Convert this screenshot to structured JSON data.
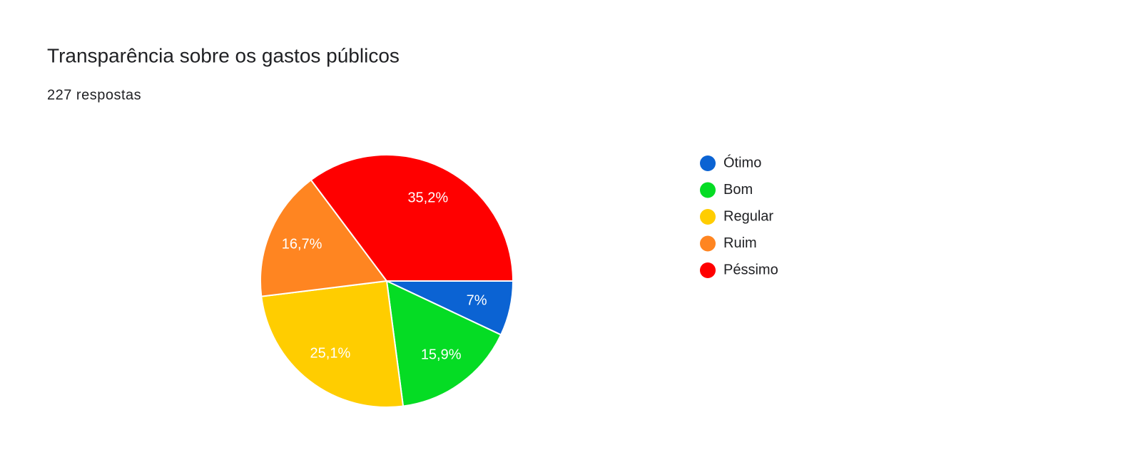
{
  "chart_data": {
    "type": "pie",
    "title": "Transparência sobre os gastos públicos",
    "subtitle": "227 respostas",
    "categories": [
      "Ótimo",
      "Bom",
      "Regular",
      "Ruim",
      "Péssimo"
    ],
    "values": [
      7,
      15.9,
      25.1,
      16.7,
      35.2
    ],
    "value_labels": [
      "7%",
      "15,9%",
      "25,1%",
      "16,7%",
      "35,2%"
    ],
    "colors": [
      "#0b63d3",
      "#05dc24",
      "#ffcd00",
      "#ff8521",
      "#ff0000"
    ],
    "legend": "right"
  }
}
